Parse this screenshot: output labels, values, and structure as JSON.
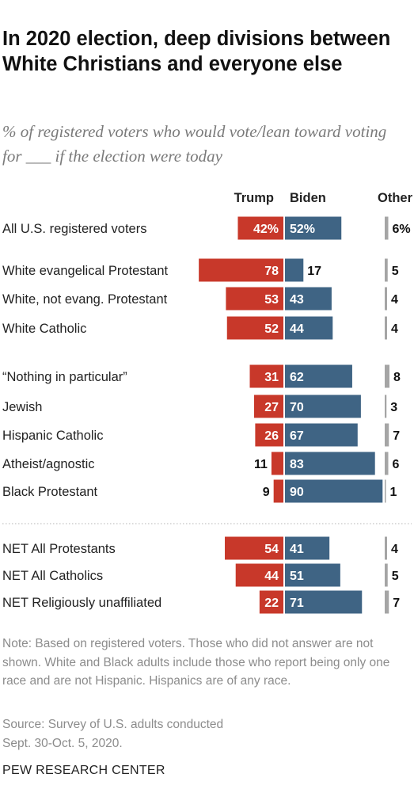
{
  "title": "In 2020 election, deep divisions between White Christians and everyone else",
  "subtitle": "% of registered voters who would vote/lean toward voting for ___ if the election were today",
  "note": "Note: Based on registered voters. Those who did not answer are not shown. White and Black adults include those who report being only one race and are not Hispanic. Hispanics are of any race.",
  "source_line1": "Source: Survey of U.S. adults conducted",
  "source_line2": "Sept. 30-Oct. 5, 2020.",
  "org": "PEW RESEARCH CENTER",
  "colors": {
    "trump": "#c8382a",
    "biden": "#3f6484",
    "other": "#a5a5a5"
  },
  "chart_data": {
    "type": "bar",
    "orientation": "horizontal",
    "stacked": "diverging",
    "title": "In 2020 election, deep divisions between White Christians and everyone else",
    "subtitle": "% of registered voters who would vote/lean toward voting for ___ if the election were today",
    "series": [
      {
        "name": "Trump",
        "values": [
          42,
          78,
          53,
          52,
          31,
          27,
          26,
          11,
          9,
          54,
          44,
          22
        ]
      },
      {
        "name": "Biden",
        "values": [
          52,
          17,
          43,
          44,
          62,
          70,
          67,
          83,
          90,
          41,
          51,
          71
        ]
      },
      {
        "name": "Other",
        "values": [
          6,
          5,
          4,
          4,
          8,
          3,
          7,
          6,
          1,
          4,
          5,
          7
        ]
      }
    ],
    "categories": [
      "All U.S. registered voters",
      "White evangelical Protestant",
      "White, not evang. Protestant",
      "White Catholic",
      "“Nothing in particular”",
      "Jewish",
      "Hispanic Catholic",
      "Atheist/agnostic",
      "Black Protestant",
      "NET All Protestants",
      "NET All Catholics",
      "NET Religiously unaffiliated"
    ],
    "rows": [
      {
        "label": "All U.S. registered voters",
        "trump": 42,
        "biden": 52,
        "other": 6,
        "trump_label": "42%",
        "biden_label": "52%",
        "other_label": "6%"
      },
      {
        "label": "White evangelical Protestant",
        "trump": 78,
        "biden": 17,
        "other": 5,
        "trump_label": "78",
        "biden_label": "17",
        "other_label": "5"
      },
      {
        "label": "White, not evang. Protestant",
        "trump": 53,
        "biden": 43,
        "other": 4,
        "trump_label": "53",
        "biden_label": "43",
        "other_label": "4"
      },
      {
        "label": "White Catholic",
        "trump": 52,
        "biden": 44,
        "other": 4,
        "trump_label": "52",
        "biden_label": "44",
        "other_label": "4"
      },
      {
        "label": "“Nothing in particular”",
        "trump": 31,
        "biden": 62,
        "other": 8,
        "trump_label": "31",
        "biden_label": "62",
        "other_label": "8"
      },
      {
        "label": "Jewish",
        "trump": 27,
        "biden": 70,
        "other": 3,
        "trump_label": "27",
        "biden_label": "70",
        "other_label": "3"
      },
      {
        "label": "Hispanic Catholic",
        "trump": 26,
        "biden": 67,
        "other": 7,
        "trump_label": "26",
        "biden_label": "67",
        "other_label": "7"
      },
      {
        "label": "Atheist/agnostic",
        "trump": 11,
        "biden": 83,
        "other": 6,
        "trump_label": "11",
        "biden_label": "83",
        "other_label": "6"
      },
      {
        "label": "Black Protestant",
        "trump": 9,
        "biden": 90,
        "other": 1,
        "trump_label": "9",
        "biden_label": "90",
        "other_label": "1"
      },
      {
        "label": "NET All Protestants",
        "trump": 54,
        "biden": 41,
        "other": 4,
        "trump_label": "54",
        "biden_label": "41",
        "other_label": "4"
      },
      {
        "label": "NET All Catholics",
        "trump": 44,
        "biden": 51,
        "other": 5,
        "trump_label": "44",
        "biden_label": "51",
        "other_label": "5"
      },
      {
        "label": "NET Religiously unaffiliated",
        "trump": 22,
        "biden": 71,
        "other": 7,
        "trump_label": "22",
        "biden_label": "71",
        "other_label": "7"
      }
    ],
    "grid": false,
    "legend": "column headers at top"
  }
}
